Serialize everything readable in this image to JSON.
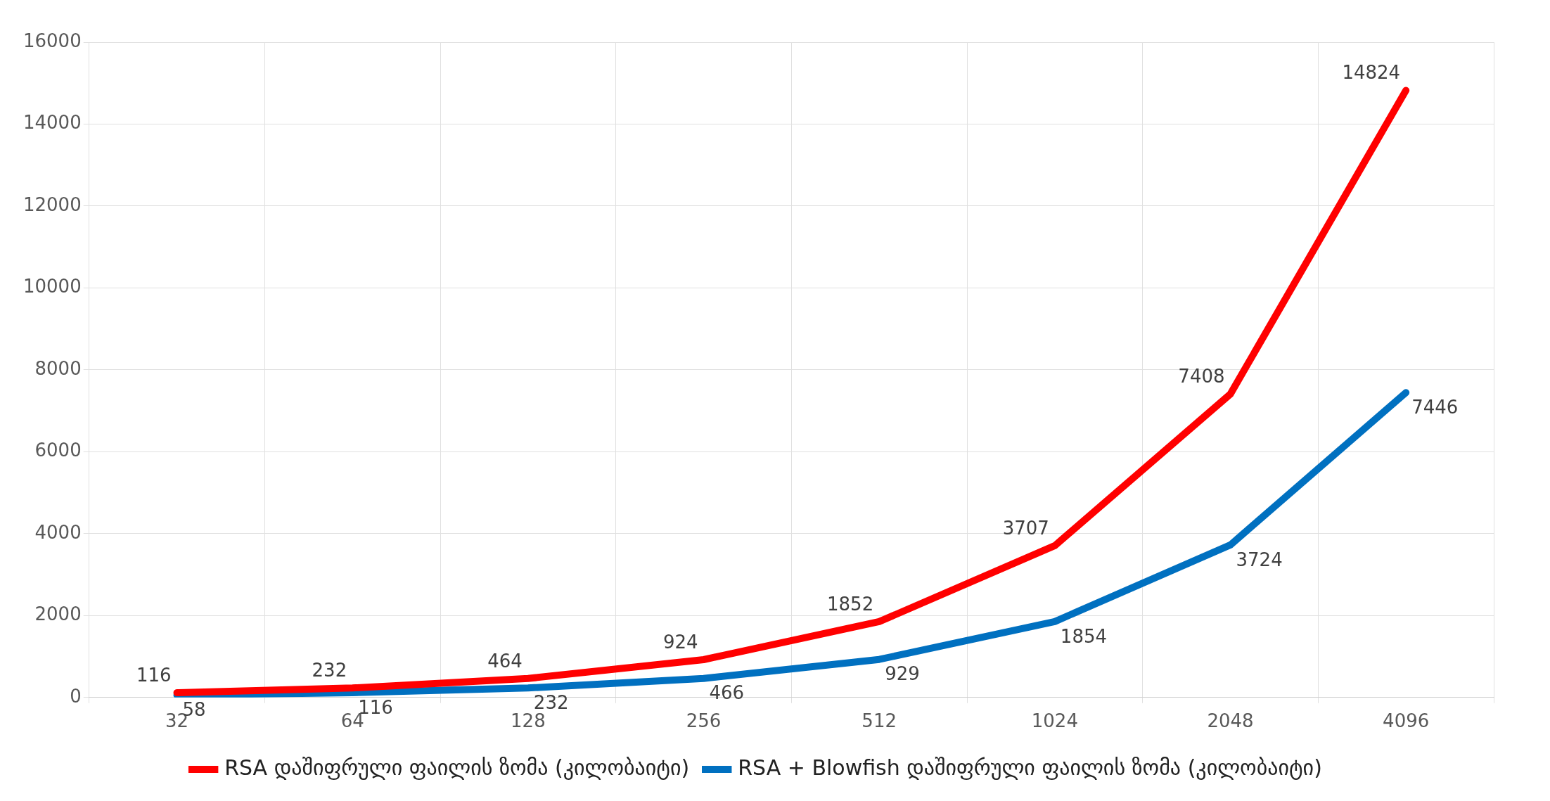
{
  "chart_data": {
    "type": "line",
    "categories": [
      "32",
      "64",
      "128",
      "256",
      "512",
      "1024",
      "2048",
      "4096"
    ],
    "series": [
      {
        "name": "RSA დაშიფრული ფაილის ზომა (კილობაიტი)",
        "color": "#ff0000",
        "values": [
          116,
          232,
          464,
          924,
          1852,
          3707,
          7408,
          14824
        ]
      },
      {
        "name": "RSA + Blowfish დაშიფრული ფაილის ზომა (კილობაიტი)",
        "color": "#0070c0",
        "values": [
          58,
          116,
          232,
          466,
          929,
          1854,
          3724,
          7446
        ]
      }
    ],
    "ylim": [
      0,
      16000
    ],
    "yticks": [
      0,
      2000,
      4000,
      6000,
      8000,
      10000,
      12000,
      14000,
      16000
    ],
    "grid": true,
    "legend": "bottom",
    "marker": "none",
    "line_style": "solid",
    "data_labels": true
  }
}
